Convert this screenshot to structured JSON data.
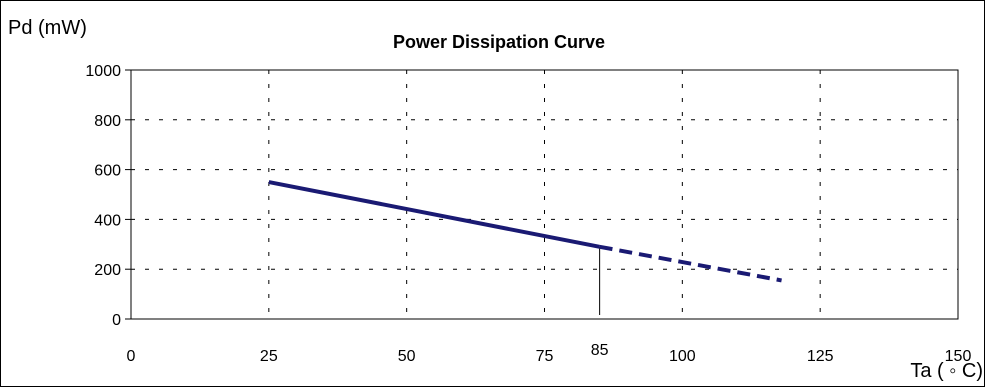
{
  "chart_data": {
    "type": "line",
    "title": "Power Dissipation Curve",
    "xlabel": "Ta ( ◦ C)",
    "ylabel": "Pd (mW)",
    "xlim": [
      0,
      150
    ],
    "ylim": [
      0,
      1000
    ],
    "x_ticks": [
      "0",
      "25",
      "50",
      "75",
      "85",
      "100",
      "125",
      "150"
    ],
    "x_tick_values": [
      0,
      25,
      50,
      75,
      85,
      100,
      125,
      150
    ],
    "y_ticks": [
      "0",
      "200",
      "400",
      "600",
      "800",
      "1000"
    ],
    "y_tick_values": [
      0,
      200,
      400,
      600,
      800,
      1000
    ],
    "grid": true,
    "series": [
      {
        "style": "solid",
        "color": "#1a1a73",
        "x": [
          25,
          85
        ],
        "y": [
          550,
          290
        ]
      },
      {
        "style": "dashed",
        "color": "#1a1a73",
        "x": [
          85,
          118
        ],
        "y": [
          290,
          155
        ]
      }
    ],
    "marker_line": {
      "x": 85,
      "y_from": 0,
      "y_to": 290
    }
  }
}
